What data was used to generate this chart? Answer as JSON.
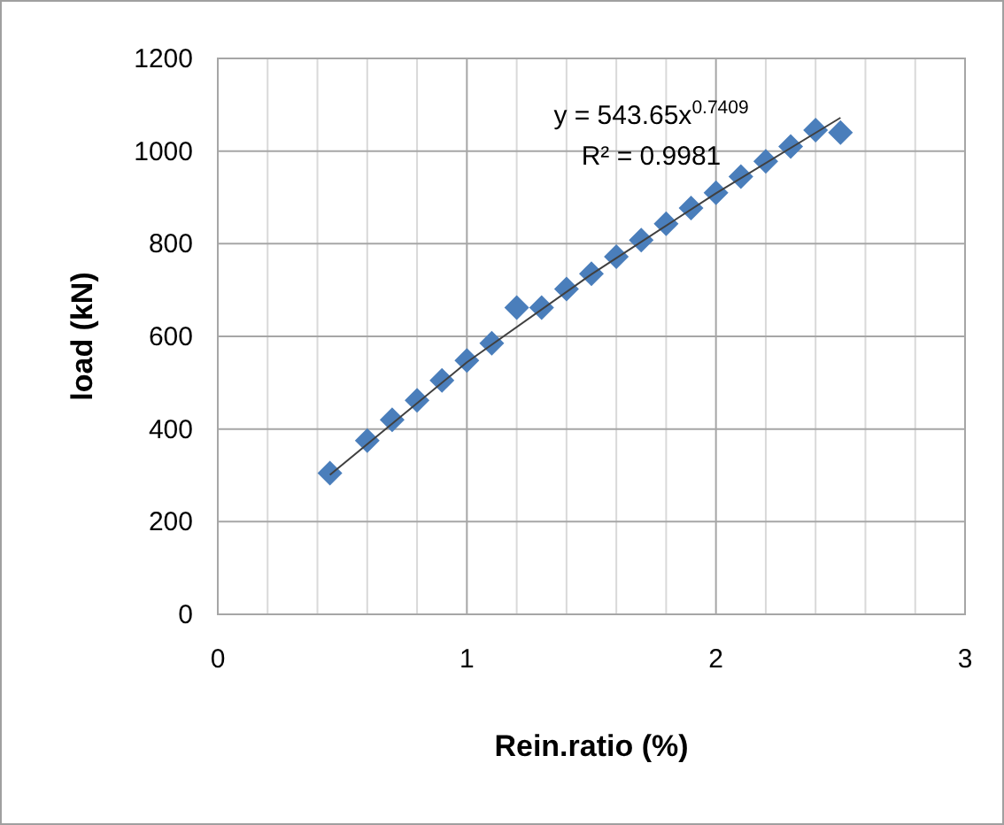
{
  "chart_data": {
    "type": "scatter",
    "xlabel": "Rein.ratio (%)",
    "ylabel": "load (kN)",
    "xlim": [
      0,
      3
    ],
    "ylim": [
      0,
      1200
    ],
    "xticks": [
      0,
      {
        "value": 0.2,
        "label": null
      },
      {
        "value": 0.4,
        "label": null
      },
      {
        "value": 0.6,
        "label": null
      },
      {
        "value": 0.8,
        "label": null
      },
      1,
      {
        "value": 1.2,
        "label": null
      },
      {
        "value": 1.4,
        "label": null
      },
      {
        "value": 1.6,
        "label": null
      },
      {
        "value": 1.8,
        "label": null
      },
      2,
      {
        "value": 2.2,
        "label": null
      },
      {
        "value": 2.4,
        "label": null
      },
      {
        "value": 2.6,
        "label": null
      },
      {
        "value": 2.8,
        "label": null
      },
      3
    ],
    "yticks": [
      0,
      200,
      400,
      600,
      800,
      1000,
      1200
    ],
    "grid": true,
    "marker": "diamond",
    "series": [
      {
        "color": "#4a7ebb",
        "x": [
          0.45,
          0.6,
          0.7,
          0.8,
          0.9,
          1.0,
          1.1,
          1.2,
          1.3,
          1.4,
          1.5,
          1.6,
          1.7,
          1.8,
          1.9,
          2.0,
          2.1,
          2.2,
          2.3,
          2.4,
          2.5
        ],
        "values": [
          305,
          375,
          420,
          462,
          505,
          548,
          585,
          662,
          662,
          702,
          735,
          772,
          808,
          843,
          877,
          910,
          945,
          978,
          1010,
          1045,
          1040
        ]
      },
      {
        "type": "line",
        "color": "#404040",
        "marker": "none",
        "x": [
          0.45,
          1,
          1.5,
          2,
          2.5
        ],
        "values": [
          301,
          544,
          734,
          909,
          1072
        ]
      }
    ],
    "annotations": [
      "y = 543.65x$^{0.7409}$",
      "R² = 0.9981"
    ]
  }
}
